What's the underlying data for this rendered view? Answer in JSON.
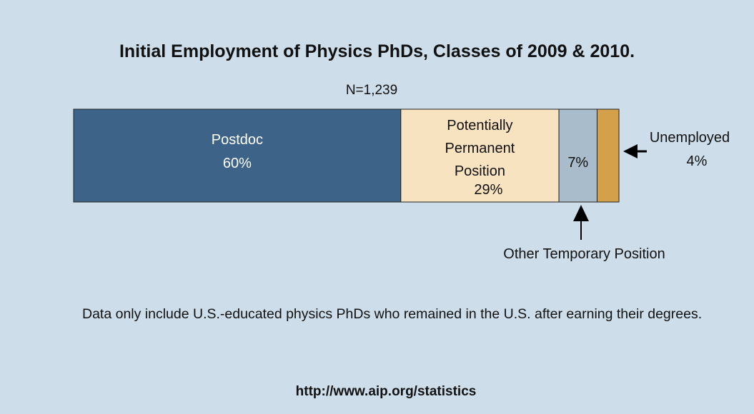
{
  "chart_data": {
    "type": "bar",
    "orientation": "horizontal",
    "stacked": true,
    "title": "Initial Employment of Physics PhDs, Classes of 2009 & 2010.",
    "subtitle": "N=1,239",
    "series": [
      {
        "name": "Postdoc",
        "color": "#3d6488",
        "values": [
          60
        ],
        "value_labels": [
          "60%"
        ]
      },
      {
        "name": "Potentially Permanent Position",
        "color": "#f8e3c1",
        "values": [
          29
        ],
        "value_labels": [
          "29%"
        ]
      },
      {
        "name": "Other Temporary Position",
        "color": "#a9bccb",
        "values": [
          7
        ],
        "value_labels": [
          "7%"
        ]
      },
      {
        "name": "Unemployed",
        "color": "#d4a04a",
        "values": [
          4
        ],
        "value_labels": [
          "4%"
        ]
      }
    ],
    "note": "Data only include U.S.-educated physics PhDs who remained in the U.S. after earning their degrees.",
    "source": "http://www.aip.org/statistics"
  }
}
